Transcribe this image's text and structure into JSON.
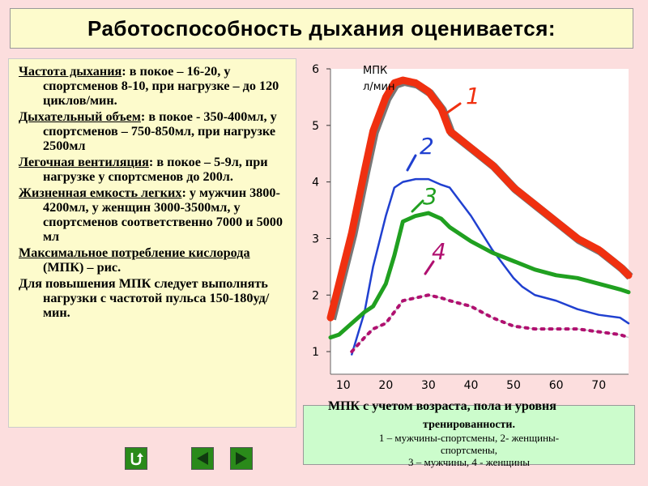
{
  "title": "Работоспособность дыхания оценивается:",
  "paragraphs": [
    {
      "term": "Частота дыхания",
      "text": ": в покое – 16-20, у спортсменов 8-10, при нагрузке – до 120 циклов/мин."
    },
    {
      "term": "Дыхательный объем",
      "text": ": в покое - 350-400мл, у спортсменов – 750-850мл, при нагрузке 2500мл"
    },
    {
      "term": "Легочная вентиляция",
      "text": ": в покое – 5-9л, при нагрузке у спортсменов до 200л."
    },
    {
      "term": "Жизненная емкость легких",
      "text": ": у мужчин 3800-4200мл, у женщин 3000-3500мл, у спортсменов соответственно 7000 и 5000 мл"
    },
    {
      "term": "Максимальное потребление кислорода",
      "text": " (МПК) – рис."
    },
    {
      "term": "",
      "text": "Для повышения МПК следует выполнять нагрузки с частотой пульса 150-180уд/мин."
    }
  ],
  "chart_data": {
    "type": "line",
    "ylabel_line1": "МПК",
    "ylabel_line2": "л/мин",
    "xlabel": "",
    "y_ticks": [
      "1",
      "2",
      "3",
      "4",
      "5",
      "6"
    ],
    "x_ticks": [
      "10",
      "20",
      "30",
      "40",
      "50",
      "60",
      "70"
    ],
    "xlim": [
      7,
      77
    ],
    "ylim": [
      0.6,
      6
    ],
    "series": [
      {
        "name": "1",
        "color": "#f03010",
        "x": [
          7,
          9,
          12,
          15,
          17,
          20,
          22,
          24,
          27,
          30,
          33,
          35,
          40,
          45,
          50,
          55,
          60,
          65,
          70,
          75,
          77
        ],
        "y": [
          1.6,
          2.2,
          3.1,
          4.2,
          4.9,
          5.5,
          5.75,
          5.8,
          5.75,
          5.6,
          5.3,
          4.9,
          4.6,
          4.3,
          3.9,
          3.6,
          3.3,
          3.0,
          2.8,
          2.5,
          2.35
        ]
      },
      {
        "name": "2",
        "color": "#2040d0",
        "x": [
          12,
          15,
          17,
          20,
          22,
          24,
          27,
          30,
          33,
          35,
          40,
          45,
          50,
          52,
          55,
          60,
          65,
          70,
          75,
          77
        ],
        "y": [
          0.95,
          1.7,
          2.5,
          3.4,
          3.9,
          4.0,
          4.05,
          4.05,
          3.95,
          3.9,
          3.4,
          2.8,
          2.3,
          2.15,
          2.0,
          1.9,
          1.75,
          1.65,
          1.6,
          1.5
        ]
      },
      {
        "name": "3",
        "color": "#20a020",
        "x": [
          7,
          9,
          12,
          15,
          17,
          20,
          22,
          24,
          27,
          30,
          33,
          35,
          40,
          45,
          50,
          55,
          60,
          65,
          70,
          75,
          77
        ],
        "y": [
          1.25,
          1.3,
          1.5,
          1.7,
          1.8,
          2.2,
          2.7,
          3.3,
          3.4,
          3.45,
          3.35,
          3.2,
          2.95,
          2.75,
          2.6,
          2.45,
          2.35,
          2.3,
          2.2,
          2.1,
          2.05
        ]
      },
      {
        "name": "4",
        "color": "#b01070",
        "x": [
          12,
          15,
          17,
          20,
          22,
          24,
          27,
          30,
          33,
          35,
          40,
          45,
          50,
          55,
          60,
          65,
          70,
          75,
          77
        ],
        "y": [
          1.0,
          1.25,
          1.4,
          1.5,
          1.7,
          1.9,
          1.95,
          2.0,
          1.95,
          1.9,
          1.8,
          1.6,
          1.45,
          1.4,
          1.4,
          1.4,
          1.35,
          1.3,
          1.25
        ]
      }
    ]
  },
  "caption": {
    "overlay": "МПК с учетом возраста, пола и уровня",
    "title": "тренированности.",
    "legend_line1": "1 – мужчины-спортсмены, 2- женщины-",
    "legend_line2": "спортсмены,",
    "legend_line3": "3 – мужчины, 4 - женщины"
  },
  "nav": {
    "return_icon": "return-icon",
    "prev_icon": "triangle-left-icon",
    "next_icon": "triangle-right-icon"
  }
}
